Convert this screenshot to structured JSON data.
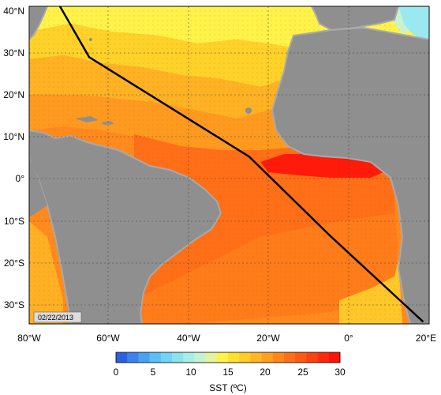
{
  "map": {
    "date_label": "02/22/2013",
    "lon_ticks": [
      "80°W",
      "60°W",
      "40°W",
      "20°W",
      "0°",
      "20°E"
    ],
    "lat_ticks": [
      "40°N",
      "30°N",
      "20°N",
      "10°N",
      "0°",
      "10°S",
      "20°S",
      "30°S"
    ],
    "lon_range": [
      -80,
      20
    ],
    "lat_range": [
      -35,
      40
    ],
    "grid": true,
    "colors": {
      "land": "#8f8f8f",
      "coast_shelf": "#a9a9a9",
      "track": "#000000"
    }
  },
  "track": {
    "points": [
      [
        -72.3,
        40
      ],
      [
        -65,
        28
      ],
      [
        -25,
        4.5
      ],
      [
        -5,
        -14
      ],
      [
        18.5,
        -34.5
      ]
    ]
  },
  "colorbar": {
    "label": "SST (ºC)",
    "ticks": [
      "0",
      "5",
      "10",
      "15",
      "20",
      "25",
      "30"
    ],
    "range": [
      0,
      30
    ],
    "colors": [
      "#2e5fe0",
      "#3a82f0",
      "#48a2f2",
      "#5cbff4",
      "#72d4f2",
      "#8ce3ec",
      "#a8eee4",
      "#c6f2d2",
      "#e4f49a",
      "#fff24a",
      "#ffe030",
      "#ffcc28",
      "#ffb624",
      "#ff9f20",
      "#ff881c",
      "#ff7118",
      "#ff5a14",
      "#ff4010",
      "#ff2a0c",
      "#ff1208"
    ]
  }
}
